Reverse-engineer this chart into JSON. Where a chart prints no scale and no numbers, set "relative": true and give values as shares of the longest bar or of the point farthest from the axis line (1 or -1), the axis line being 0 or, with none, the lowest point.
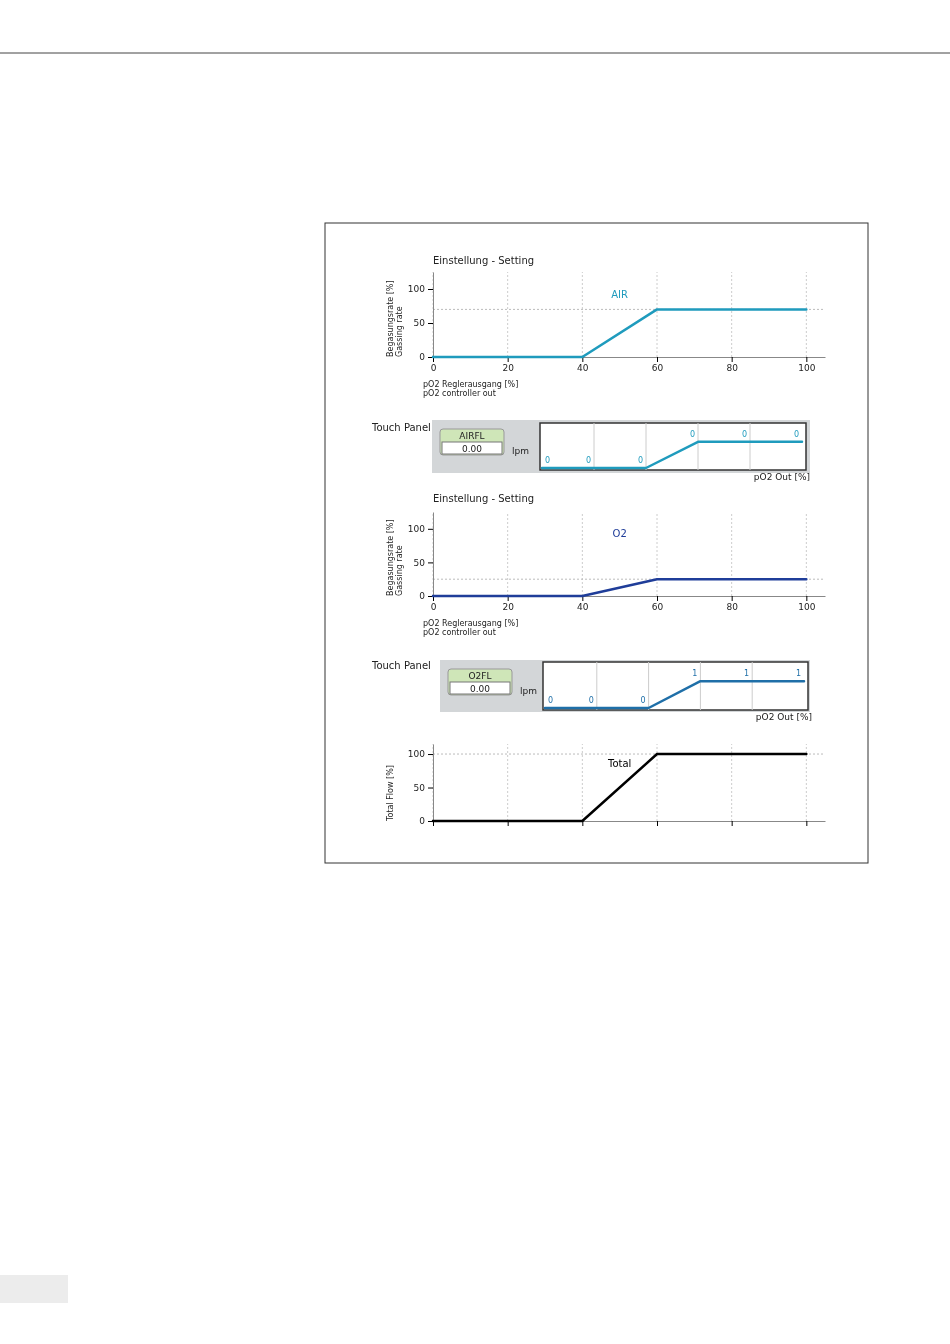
{
  "chart_data": [
    {
      "type": "line",
      "title": "Einstellung - Setting",
      "ylabel": "Begasungsrate [%]\nGassing rate",
      "xlabel": "pO2 Reglerausgang [%]\npO2 controller out",
      "x": [
        0,
        20,
        40,
        60,
        80,
        100
      ],
      "series": [
        {
          "name": "AIR",
          "color": "#1f9bbd",
          "values": [
            0,
            0,
            0,
            70,
            70,
            70
          ]
        }
      ],
      "xlim": [
        0,
        105
      ],
      "xticks": [
        0,
        20,
        40,
        60,
        80,
        100
      ],
      "ylim": [
        0,
        125
      ],
      "yticks": [
        0,
        50,
        100
      ],
      "grid": "x",
      "ref_lines": [
        {
          "axis": "y",
          "value": 70,
          "color": "#bbbbbb",
          "line_style": "dotted"
        }
      ]
    },
    {
      "type": "line",
      "relative": true,
      "xlabel": "pO2 Out [%]",
      "categories": [
        null,
        null,
        null,
        null,
        null,
        null
      ],
      "series": [
        {
          "color": "#1f9bbd",
          "values": [
            0,
            0,
            0,
            1,
            1,
            1
          ]
        }
      ],
      "value_labels": [
        "0",
        "0",
        "0",
        "0",
        "0",
        "0"
      ],
      "grid": "x",
      "annotations": [
        "Touch Panel",
        "AIRFL",
        "0.00",
        "lpm"
      ]
    },
    {
      "type": "line",
      "title": "Einstellung - Setting",
      "ylabel": "Begasungsrate [%]\nGassing rate",
      "xlabel": "pO2 Reglerausgang [%]\npO2 controller out",
      "x": [
        0,
        20,
        40,
        60,
        80,
        100
      ],
      "series": [
        {
          "name": "O2",
          "color": "#1f3d99",
          "values": [
            0,
            0,
            0,
            25,
            25,
            25
          ]
        }
      ],
      "xlim": [
        0,
        105
      ],
      "xticks": [
        0,
        20,
        40,
        60,
        80,
        100
      ],
      "ylim": [
        0,
        125
      ],
      "yticks": [
        0,
        50,
        100
      ],
      "grid": "x",
      "ref_lines": [
        {
          "axis": "y",
          "value": 25,
          "color": "#bbbbbb",
          "line_style": "dotted"
        }
      ]
    },
    {
      "type": "line",
      "relative": true,
      "xlabel": "pO2 Out [%]",
      "categories": [
        null,
        null,
        null,
        null,
        null,
        null
      ],
      "series": [
        {
          "color": "#1f6fa8",
          "values": [
            0,
            0,
            0,
            1,
            1,
            1
          ]
        }
      ],
      "value_labels": [
        "0",
        "0",
        "0",
        "1",
        "1",
        "1"
      ],
      "grid": "x",
      "annotations": [
        "Touch Panel",
        "O2FL",
        "0.00",
        "lpm"
      ]
    },
    {
      "type": "line",
      "ylabel": "Total Flow [%]",
      "x": [
        0,
        20,
        40,
        60,
        80,
        100
      ],
      "series": [
        {
          "name": "Total",
          "color": "#000000",
          "values": [
            0,
            0,
            0,
            100,
            100,
            100
          ]
        }
      ],
      "xlim": [
        0,
        105
      ],
      "xticks": [
        {
          "value": 0,
          "label": null
        },
        {
          "value": 20,
          "label": null
        },
        {
          "value": 40,
          "label": null
        },
        {
          "value": 60,
          "label": null
        },
        {
          "value": 80,
          "label": null
        },
        {
          "value": 100,
          "label": null
        }
      ],
      "ylim": [
        0,
        115
      ],
      "yticks": [
        0,
        50,
        100
      ],
      "grid": "x",
      "tick_labels": "y",
      "ref_lines": [
        {
          "axis": "y",
          "value": 100,
          "color": "#bbbbbb",
          "line_style": "dotted"
        }
      ]
    }
  ]
}
